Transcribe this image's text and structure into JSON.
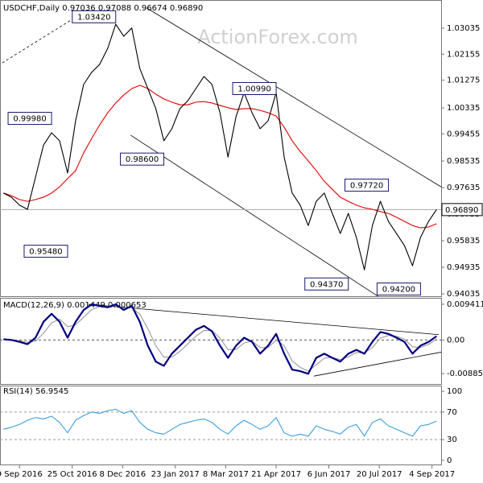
{
  "chart_data": [
    {
      "type": "line",
      "title": "USDCHF,Daily 0.97036 0.97088 0.96674 0.96890",
      "watermark": "ActionForex.com",
      "x": [
        "2016-08-26",
        "2016-09-02",
        "2016-09-09",
        "2016-09-16",
        "2016-09-23",
        "2016-09-30",
        "2016-10-07",
        "2016-10-14",
        "2016-10-21",
        "2016-10-28",
        "2016-11-04",
        "2016-11-11",
        "2016-11-18",
        "2016-11-25",
        "2016-12-02",
        "2016-12-09",
        "2016-12-16",
        "2016-12-23",
        "2016-12-30",
        "2017-01-06",
        "2017-01-13",
        "2017-01-20",
        "2017-01-27",
        "2017-02-03",
        "2017-02-10",
        "2017-02-17",
        "2017-02-24",
        "2017-03-03",
        "2017-03-10",
        "2017-03-17",
        "2017-03-24",
        "2017-03-31",
        "2017-04-07",
        "2017-04-14",
        "2017-04-21",
        "2017-04-28",
        "2017-05-05",
        "2017-05-12",
        "2017-05-19",
        "2017-05-26",
        "2017-06-02",
        "2017-06-09",
        "2017-06-16",
        "2017-06-23",
        "2017-06-30",
        "2017-07-07",
        "2017-07-14",
        "2017-07-21",
        "2017-07-28",
        "2017-08-04",
        "2017-08-11",
        "2017-08-18",
        "2017-08-25",
        "2017-09-01",
        "2017-09-08"
      ],
      "xlim": [
        "2016-08-23",
        "2017-09-12"
      ],
      "ylim": [
        0.93955,
        1.03935
      ],
      "yticks": [
        1.03035,
        1.02155,
        1.01275,
        1.00335,
        0.99455,
        0.98535,
        0.97635,
        0.96735,
        0.95835,
        0.94935,
        0.94035
      ],
      "series": [
        {
          "color": "#000000",
          "values": [
            0.9745,
            0.9731,
            0.9704,
            0.969,
            0.9799,
            0.9908,
            0.9949,
            0.9922,
            0.9813,
            0.999,
            1.0113,
            1.0154,
            1.0181,
            1.0235,
            1.0317,
            1.0276,
            1.0304,
            1.0167,
            1.0099,
            1.0031,
            0.9922,
            0.9963,
            1.0031,
            1.0058,
            1.0099,
            1.014,
            1.0113,
            1.0017,
            0.9867,
            1.0004,
            1.0085,
            1.0017,
            0.9963,
            0.999,
            1.0085,
            0.9867,
            0.9745,
            0.9704,
            0.9635,
            0.9717,
            0.9745,
            0.9676,
            0.9608,
            0.9676,
            0.9595,
            0.9485,
            0.9635,
            0.9717,
            0.9649,
            0.9608,
            0.9567,
            0.9499,
            0.9595,
            0.9649,
            0.9689
          ]
        },
        {
          "color": "#e00000",
          "values": [
            0.9745,
            0.9736,
            0.9723,
            0.9717,
            0.9723,
            0.9731,
            0.9745,
            0.9766,
            0.9794,
            0.9821,
            0.9881,
            0.993,
            0.9976,
            1.0017,
            1.005,
            1.0077,
            1.0099,
            1.011,
            1.0099,
            1.008,
            1.0064,
            1.0053,
            1.0044,
            1.0044,
            1.0053,
            1.0055,
            1.005,
            1.0042,
            1.0034,
            1.0028,
            1.0031,
            1.0031,
            1.0025,
            1.0017,
            1.0006,
            0.9968,
            0.9922,
            0.9886,
            0.9854,
            0.9821,
            0.9785,
            0.9758,
            0.9731,
            0.9717,
            0.9704,
            0.9695,
            0.969,
            0.9682,
            0.9676,
            0.9663,
            0.9649,
            0.9635,
            0.9627,
            0.963,
            0.9641
          ]
        }
      ],
      "last": {
        "value": 0.9689,
        "label": "0.96890"
      },
      "annotations": {
        "x": [
          "2016-12-02",
          "2016-10-07",
          "2017-01-13",
          "2016-10-21",
          "2017-04-21",
          "2017-07-28",
          "2017-06-23",
          "2017-08-25"
        ],
        "values": [
          1.0342,
          0.9998,
          0.986,
          0.9548,
          1.0099,
          0.9772,
          0.9437,
          0.942
        ],
        "value_labels": [
          "1.03420",
          "0.99980",
          "0.98600",
          "0.95480",
          "1.00990",
          "0.97720",
          "0.94370",
          "0.94200"
        ]
      },
      "trend_lines": [
        {
          "x": [
            "2016-12-29",
            "2017-09-12"
          ],
          "values": [
            1.0372,
            0.9766
          ]
        },
        {
          "x": [
            "2016-12-15",
            "2017-07-19"
          ],
          "values": [
            0.9941,
            0.9395
          ]
        },
        {
          "x": [
            "2016-08-25",
            "2016-10-24"
          ],
          "values": [
            1.0186,
            1.0331
          ],
          "dashed": true
        }
      ]
    },
    {
      "type": "line",
      "title": "MACD(12,26,9) 0.001449 0.000653",
      "x": [
        "2016-08-26",
        "2016-09-02",
        "2016-09-09",
        "2016-09-16",
        "2016-09-23",
        "2016-09-30",
        "2016-10-07",
        "2016-10-14",
        "2016-10-21",
        "2016-10-28",
        "2016-11-04",
        "2016-11-11",
        "2016-11-18",
        "2016-11-25",
        "2016-12-02",
        "2016-12-09",
        "2016-12-16",
        "2016-12-23",
        "2016-12-30",
        "2017-01-06",
        "2017-01-13",
        "2017-01-20",
        "2017-01-27",
        "2017-02-03",
        "2017-02-10",
        "2017-02-17",
        "2017-02-24",
        "2017-03-03",
        "2017-03-10",
        "2017-03-17",
        "2017-03-24",
        "2017-03-31",
        "2017-04-07",
        "2017-04-14",
        "2017-04-21",
        "2017-04-28",
        "2017-05-05",
        "2017-05-12",
        "2017-05-19",
        "2017-05-26",
        "2017-06-02",
        "2017-06-09",
        "2017-06-16",
        "2017-06-23",
        "2017-06-30",
        "2017-07-07",
        "2017-07-14",
        "2017-07-21",
        "2017-07-28",
        "2017-08-04",
        "2017-08-11",
        "2017-08-18",
        "2017-08-25",
        "2017-09-01",
        "2017-09-08"
      ],
      "xlim": [
        "2016-08-23",
        "2017-09-12"
      ],
      "ylim": [
        -0.011581,
        0.01067
      ],
      "yticks": [
        0.009411,
        {
          "value": 0,
          "label": "0.00"
        },
        -0.008852
      ],
      "series": [
        {
          "color": "#000080",
          "values": [
            0.0002,
            0,
            -0.0005,
            -0.0011,
            0.0006,
            0.0048,
            0.0069,
            0.0048,
            0.0006,
            0.0048,
            0.0079,
            0.0094,
            0.009,
            0.0086,
            0.0094,
            0.0079,
            0.009,
            0.0048,
            -0.0015,
            -0.0057,
            -0.0068,
            -0.0036,
            -0.0015,
            0.0006,
            0.0027,
            0.0037,
            0.0023,
            -0.0015,
            -0.0047,
            -0.0015,
            0.0006,
            -0.0005,
            -0.0036,
            -0.0015,
            0.0016,
            -0.0036,
            -0.0078,
            -0.0082,
            -0.0089,
            -0.0047,
            -0.0036,
            -0.0047,
            -0.0057,
            -0.0036,
            -0.0026,
            -0.0036,
            -0.0005,
            0.0021,
            0.0016,
            0.0006,
            -0.0005,
            -0.0036,
            -0.0015,
            -0.0005,
            0.001
          ]
        },
        {
          "color": "#9a9a9a",
          "values": [
            0.0002,
            0.0001,
            -0.0002,
            -0.0006,
            -0.0003,
            0.0018,
            0.0045,
            0.0055,
            0.0035,
            0.004,
            0.006,
            0.008,
            0.0088,
            0.0088,
            0.009,
            0.0084,
            0.0085,
            0.0068,
            0.003,
            -0.0015,
            -0.0045,
            -0.0045,
            -0.003,
            -0.001,
            0.001,
            0.0025,
            0.0025,
            0.0005,
            -0.0025,
            -0.0025,
            -0.0008,
            -0.0003,
            -0.002,
            -0.002,
            0,
            -0.0015,
            -0.0055,
            -0.0072,
            -0.0082,
            -0.0065,
            -0.0048,
            -0.0046,
            -0.0052,
            -0.0044,
            -0.0033,
            -0.0034,
            -0.002,
            0.0005,
            0.0012,
            0.001,
            0.0002,
            -0.0018,
            -0.002,
            -0.0012,
            0.0003
          ]
        }
      ],
      "trend_lines": [
        {
          "x": [
            "2016-11-08",
            "2017-09-10"
          ],
          "values": [
            0.0094,
            0.0014
          ]
        },
        {
          "x": [
            "2017-05-24",
            "2017-09-12"
          ],
          "values": [
            -0.0095,
            -0.0032
          ]
        }
      ]
    },
    {
      "type": "line",
      "title": "RSI(14) 56.9545",
      "x": [
        "2016-08-26",
        "2016-09-02",
        "2016-09-09",
        "2016-09-16",
        "2016-09-23",
        "2016-09-30",
        "2016-10-07",
        "2016-10-14",
        "2016-10-21",
        "2016-10-28",
        "2016-11-04",
        "2016-11-11",
        "2016-11-18",
        "2016-11-25",
        "2016-12-02",
        "2016-12-09",
        "2016-12-16",
        "2016-12-23",
        "2016-12-30",
        "2017-01-06",
        "2017-01-13",
        "2017-01-20",
        "2017-01-27",
        "2017-02-03",
        "2017-02-10",
        "2017-02-17",
        "2017-02-24",
        "2017-03-03",
        "2017-03-10",
        "2017-03-17",
        "2017-03-24",
        "2017-03-31",
        "2017-04-07",
        "2017-04-14",
        "2017-04-21",
        "2017-04-28",
        "2017-05-05",
        "2017-05-12",
        "2017-05-19",
        "2017-05-26",
        "2017-06-02",
        "2017-06-09",
        "2017-06-16",
        "2017-06-23",
        "2017-06-30",
        "2017-07-07",
        "2017-07-14",
        "2017-07-21",
        "2017-07-28",
        "2017-08-04",
        "2017-08-11",
        "2017-08-18",
        "2017-08-25",
        "2017-09-01",
        "2017-09-08"
      ],
      "xlim": [
        "2016-08-23",
        "2017-09-12"
      ],
      "ylim": [
        -6,
        106
      ],
      "yticks": [
        100,
        70,
        30,
        0
      ],
      "levels": [
        70,
        30
      ],
      "xticks": [
        {
          "value": "2016-09-09",
          "label": "9 Sep 2016"
        },
        {
          "value": "2016-10-25",
          "label": "25 Oct 2016"
        },
        {
          "value": "2016-12-08",
          "label": "8 Dec 2016"
        },
        {
          "value": "2017-01-23",
          "label": "23 Jan 2017"
        },
        {
          "value": "2017-03-08",
          "label": "8 Mar 2017"
        },
        {
          "value": "2017-04-21",
          "label": "21 Apr 2017"
        },
        {
          "value": "2017-06-06",
          "label": "6 Jun 2017"
        },
        {
          "value": "2017-07-20",
          "label": "20 Jul 2017"
        },
        {
          "value": "2017-09-04",
          "label": "4 Sep 2017"
        }
      ],
      "series": [
        {
          "color": "#3d9ee0",
          "values": [
            45,
            48,
            52,
            58,
            62,
            60,
            64,
            55,
            40,
            58,
            65,
            70,
            68,
            72,
            74,
            68,
            72,
            55,
            45,
            40,
            38,
            45,
            52,
            55,
            58,
            60,
            55,
            45,
            38,
            50,
            58,
            52,
            45,
            50,
            62,
            40,
            35,
            38,
            35,
            50,
            45,
            42,
            38,
            48,
            52,
            35,
            55,
            60,
            50,
            45,
            40,
            35,
            50,
            52,
            57
          ]
        }
      ]
    }
  ]
}
